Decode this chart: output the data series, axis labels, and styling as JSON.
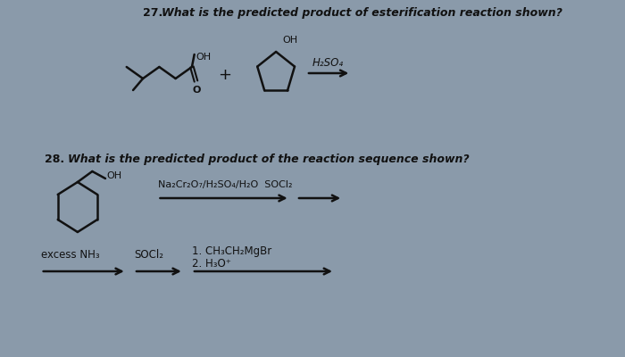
{
  "background_color": "#8a9aaa",
  "page_color": "#c8c4b8",
  "q27_number": "27.",
  "q27_text": "What is the predicted product of esterification reaction shown?",
  "q28_number": "28.",
  "q28_text": "What is the predicted product of the reaction sequence shown?",
  "reagent27": "H₂SO₄",
  "reagent28a": "Na₂Cr₂O₇/H₂SO₄/H₂O",
  "reagent28b": "SOCl₂",
  "reagent28c": "excess NH₃",
  "reagent28d": "SOCl₂",
  "reagent28e": "1. CH₃CH₂MgBr",
  "reagent28f": "2. H₃O⁺",
  "text_color": "#111111",
  "arrow_color": "#111111",
  "line_color": "#111111"
}
